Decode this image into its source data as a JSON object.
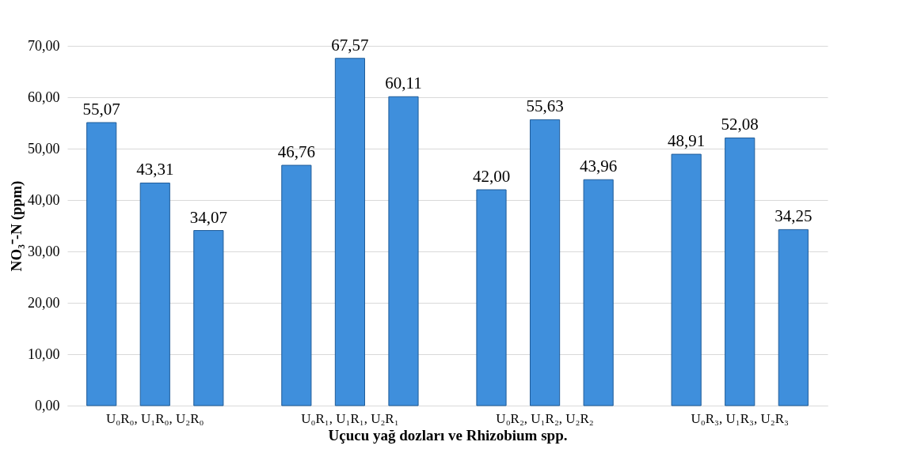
{
  "chart_data": {
    "type": "bar",
    "xlabel": "Uçucu yağ dozları ve Rhizobium  spp.",
    "ylabel": "NO₃⁻-N (ppm)",
    "categories": [
      "U₀R₀, U₁R₀, U₂R₀",
      "U₀R₁, U₁R₁, U₂R₁",
      "U₀R₂, U₁R₂, U₂R₂",
      "U₀R₃, U₁R₃, U₂R₃"
    ],
    "series": [
      {
        "color": "#3f8fdc",
        "values": [
          55.07,
          46.76,
          42.0,
          48.91
        ],
        "value_labels": [
          "55,07",
          "46,76",
          "42,00",
          "48,91"
        ]
      },
      {
        "color": "#3f8fdc",
        "values": [
          43.31,
          67.57,
          55.63,
          52.08
        ],
        "value_labels": [
          "43,31",
          "67,57",
          "55,63",
          "52,08"
        ]
      },
      {
        "color": "#3f8fdc",
        "values": [
          34.07,
          60.11,
          43.96,
          34.25
        ],
        "value_labels": [
          "34,07",
          "60,11",
          "43,96",
          "34,25"
        ]
      }
    ],
    "ylim": [
      0,
      70
    ],
    "yticks": [
      {
        "value": 0,
        "label": "0,00"
      },
      {
        "value": 10,
        "label": "10,00"
      },
      {
        "value": 20,
        "label": "20,00"
      },
      {
        "value": 30,
        "label": "30,00"
      },
      {
        "value": 40,
        "label": "40,00"
      },
      {
        "value": 50,
        "label": "50,00"
      },
      {
        "value": 60,
        "label": "60,00"
      },
      {
        "value": 70,
        "label": "70,00"
      }
    ],
    "grid": "y",
    "legend": false
  }
}
